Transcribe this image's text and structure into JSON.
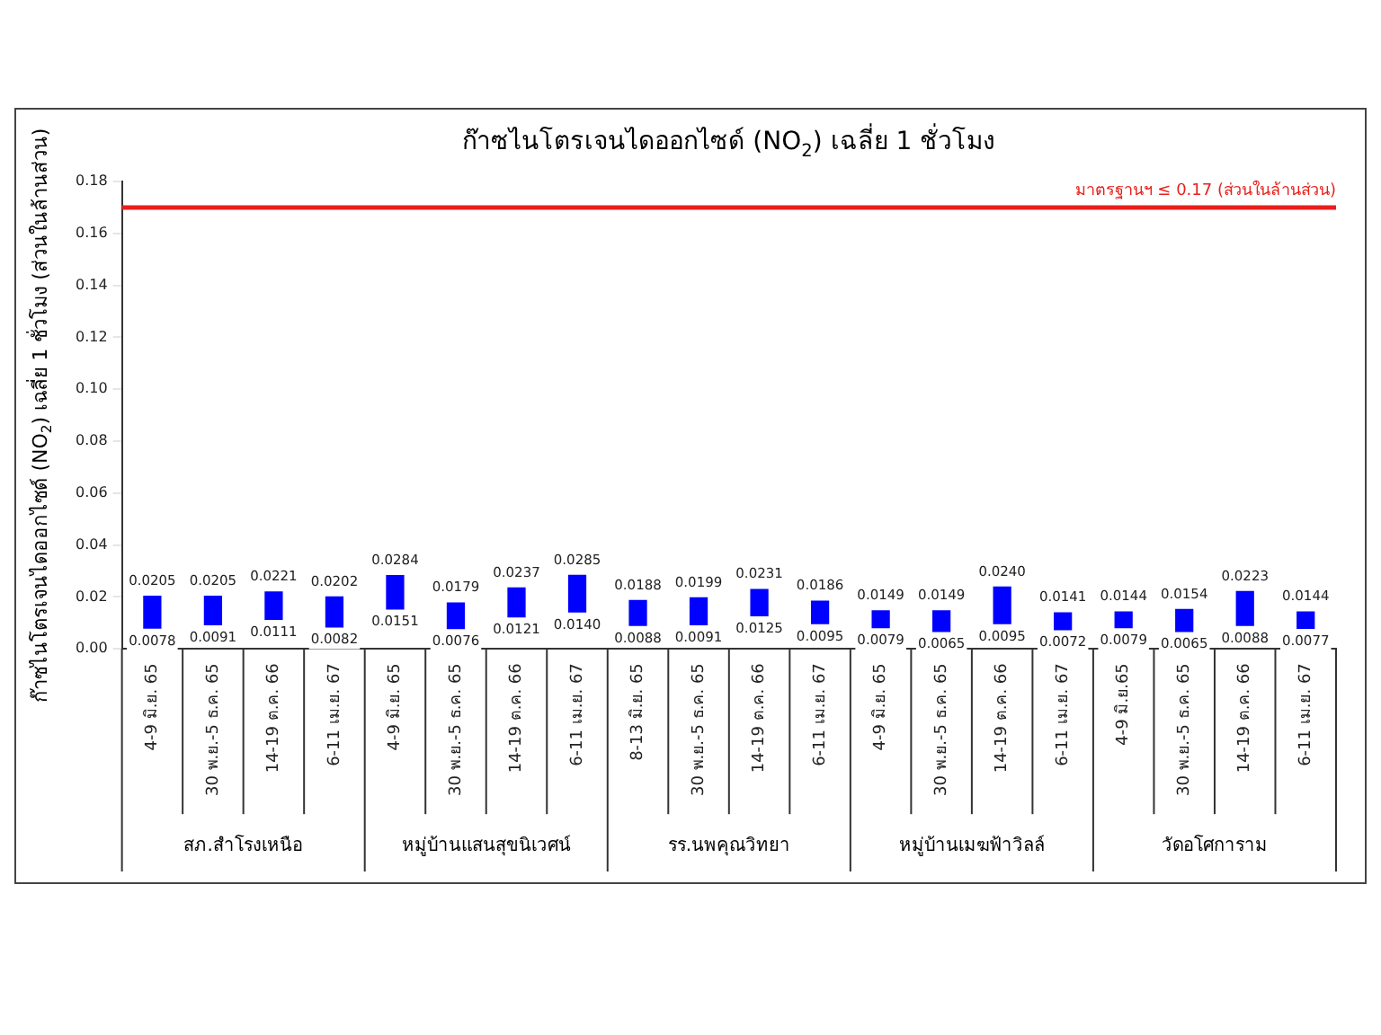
{
  "chart_data": {
    "type": "bar",
    "title": "ก๊าซไนโตรเจนไดออกไซด์ (NO$_{2}$) เฉลี่ย 1 ชั่วโมง",
    "ylabel": "ก๊าซไนโตรเจนไดออกไซด์ (NO$_{2}$) เฉลี่ย 1 ชั่วโมง (ส่วนในล้านส่วน)",
    "categories": [
      "4-9 มิ.ย. 65",
      "30 พ.ย.-5 ธ.ค. 65",
      "14-19 ต.ค. 66",
      "6-11 เม.ย. 67",
      "4-9 มิ.ย. 65",
      "30 พ.ย.-5 ธ.ค. 65",
      "14-19 ต.ค. 66",
      "6-11 เม.ย. 67",
      "8-13 มิ.ย. 65",
      "30 พ.ย.-5 ธ.ค. 65",
      "14-19 ต.ค. 66",
      "6-11 เม.ย. 67",
      "4-9 มิ.ย. 65",
      "30 พ.ย.-5 ธ.ค. 65",
      "14-19 ต.ค. 66",
      "6-11 เม.ย. 67",
      "4-9 มิ.ย.65",
      "30 พ.ย.-5 ธ.ค. 65",
      "14-19 ต.ค. 66",
      "6-11 เม.ย. 67"
    ],
    "values": [
      0.0127,
      0.0114,
      0.011,
      0.012,
      0.0133,
      0.0103,
      0.0116,
      0.0145,
      0.01,
      0.0108,
      0.0106,
      0.0091,
      0.007,
      0.0084,
      0.0145,
      0.0069,
      0.0065,
      0.0089,
      0.0135,
      0.0067
    ],
    "base": [
      0.0078,
      0.0091,
      0.0111,
      0.0082,
      0.0151,
      0.0076,
      0.0121,
      0.014,
      0.0088,
      0.0091,
      0.0125,
      0.0095,
      0.0079,
      0.0065,
      0.0095,
      0.0072,
      0.0079,
      0.0065,
      0.0088,
      0.0077
    ],
    "color": "#0000ff",
    "ylim": [
      0,
      0.18
    ],
    "yticks": [
      {
        "value": 0,
        "label": "0.00"
      },
      {
        "value": 0.02,
        "label": "0.02"
      },
      {
        "value": 0.04,
        "label": "0.04"
      },
      {
        "value": 0.06,
        "label": "0.06"
      },
      {
        "value": 0.08,
        "label": "0.08"
      },
      {
        "value": 0.1,
        "label": "0.10"
      },
      {
        "value": 0.12,
        "label": "0.12"
      },
      {
        "value": 0.14,
        "label": "0.14"
      },
      {
        "value": 0.16,
        "label": "0.16"
      },
      {
        "value": 0.18,
        "label": "0.18"
      }
    ],
    "grid": false,
    "ref_lines": [
      {
        "axis": "y",
        "value": 0.17,
        "label": "มาตรฐานฯ ≤ 0.17 (ส่วนในล้านส่วน)",
        "color": "#e8201c",
        "line_style": "solid"
      }
    ],
    "annotations": [
      {
        "text": "0.0205",
        "y": 0.0205
      },
      {
        "text": "0.0078",
        "y": 0.0078
      },
      {
        "text": "0.0205",
        "y": 0.0205
      },
      {
        "text": "0.0091",
        "y": 0.0091
      },
      {
        "text": "0.0221",
        "y": 0.0221
      },
      {
        "text": "0.0111",
        "y": 0.0111
      },
      {
        "text": "0.0202",
        "y": 0.0202
      },
      {
        "text": "0.0082",
        "y": 0.0082
      },
      {
        "text": "0.0284",
        "y": 0.0284
      },
      {
        "text": "0.0151",
        "y": 0.0151
      },
      {
        "text": "0.0179",
        "y": 0.0179
      },
      {
        "text": "0.0076",
        "y": 0.0076
      },
      {
        "text": "0.0237",
        "y": 0.0237
      },
      {
        "text": "0.0121",
        "y": 0.0121
      },
      {
        "text": "0.0285",
        "y": 0.0285
      },
      {
        "text": "0.0140",
        "y": 0.014
      },
      {
        "text": "0.0188",
        "y": 0.0188
      },
      {
        "text": "0.0088",
        "y": 0.0088
      },
      {
        "text": "0.0199",
        "y": 0.0199
      },
      {
        "text": "0.0091",
        "y": 0.0091
      },
      {
        "text": "0.0231",
        "y": 0.0231
      },
      {
        "text": "0.0125",
        "y": 0.0125
      },
      {
        "text": "0.0186",
        "y": 0.0186
      },
      {
        "text": "0.0095",
        "y": 0.0095
      },
      {
        "text": "0.0149",
        "y": 0.0149
      },
      {
        "text": "0.0079",
        "y": 0.0079
      },
      {
        "text": "0.0149",
        "y": 0.0149
      },
      {
        "text": "0.0065",
        "y": 0.0065
      },
      {
        "text": "0.0240",
        "y": 0.024
      },
      {
        "text": "0.0095",
        "y": 0.0095
      },
      {
        "text": "0.0141",
        "y": 0.0141
      },
      {
        "text": "0.0072",
        "y": 0.0072
      },
      {
        "text": "0.0144",
        "y": 0.0144
      },
      {
        "text": "0.0079",
        "y": 0.0079
      },
      {
        "text": "0.0154",
        "y": 0.0154
      },
      {
        "text": "0.0065",
        "y": 0.0065
      },
      {
        "text": "0.0223",
        "y": 0.0223
      },
      {
        "text": "0.0088",
        "y": 0.0088
      },
      {
        "text": "0.0144",
        "y": 0.0144
      },
      {
        "text": "0.0077",
        "y": 0.0077
      },
      "สภ.สำโรงเหนือ",
      "หมู่บ้านแสนสุขนิเวศน์",
      "รร.นพคุณวิทยา",
      "หมู่บ้านเมฆฟ้าวิลล์",
      "วัดอโศการาม"
    ]
  }
}
